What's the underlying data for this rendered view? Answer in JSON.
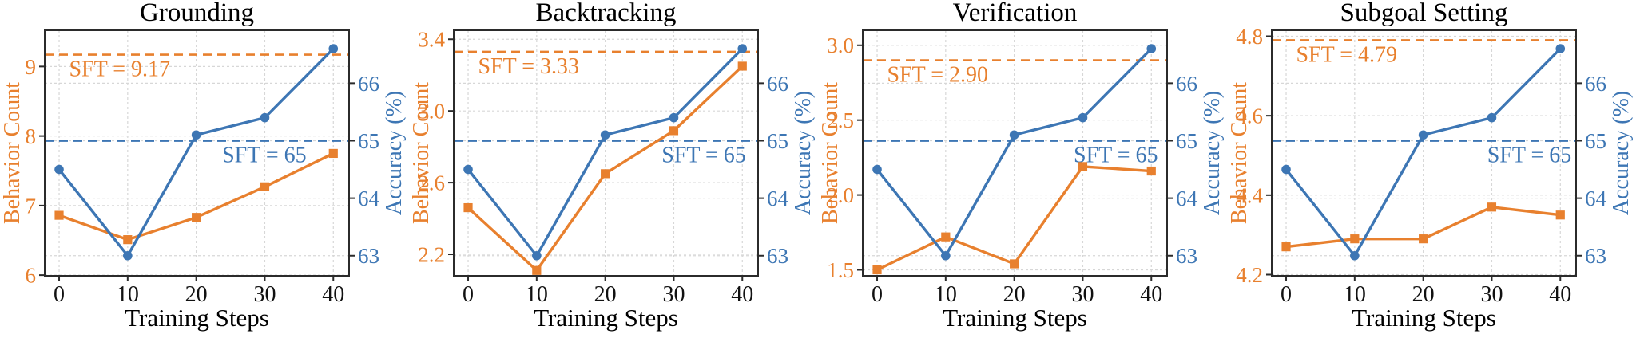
{
  "figure": {
    "xlabel": "Training Steps",
    "colors": {
      "behavior_orange": "#e8802e",
      "accuracy_blue": "#3d76b4",
      "frame": "#2b2b2b",
      "grid": "#d7d7d7",
      "tick_text_x": "#111111"
    }
  },
  "chart_data": [
    {
      "type": "line",
      "title": "Grounding",
      "xlabel": "Training Steps",
      "x": [
        0,
        10,
        20,
        30,
        40
      ],
      "x_tick_labels": [
        "0",
        "10",
        "20",
        "30",
        "40"
      ],
      "xlim": [
        -2.1,
        42.3
      ],
      "left_axis": {
        "label": "Behavior Count",
        "color": "#e8802e",
        "ticks": [
          6,
          7,
          8,
          9
        ],
        "tick_labels": [
          "6",
          "7",
          "8",
          "9"
        ],
        "ylim": [
          5.99,
          9.52
        ]
      },
      "right_axis": {
        "label": "Accuracy (%)",
        "color": "#3d76b4",
        "ticks": [
          63,
          64,
          65,
          66
        ],
        "tick_labels": [
          "63",
          "64",
          "65",
          "66"
        ],
        "ylim": [
          62.65,
          66.92
        ]
      },
      "series": [
        {
          "name": "Behavior Count",
          "axis": "left",
          "marker": "square",
          "color": "#e8802e",
          "values": [
            6.86,
            6.51,
            6.83,
            7.27,
            7.75
          ]
        },
        {
          "name": "Accuracy",
          "axis": "right",
          "marker": "circle",
          "color": "#3d76b4",
          "values": [
            64.5,
            63.0,
            65.1,
            65.4,
            66.6
          ]
        }
      ],
      "reference_lines": [
        {
          "axis": "left",
          "value": 9.17,
          "label": "SFT = 9.17",
          "color": "#e8802e",
          "label_anchor": "start",
          "label_frac": 0.08
        },
        {
          "axis": "right",
          "value": 65,
          "label": "SFT = 65",
          "color": "#3d76b4",
          "label_anchor": "end",
          "label_frac": 0.86
        }
      ]
    },
    {
      "type": "line",
      "title": "Backtracking",
      "xlabel": "Training Steps",
      "x": [
        0,
        10,
        20,
        30,
        40
      ],
      "x_tick_labels": [
        "0",
        "10",
        "20",
        "30",
        "40"
      ],
      "xlim": [
        -2.1,
        42.3
      ],
      "left_axis": {
        "label": "Behavior Count",
        "color": "#e8802e",
        "ticks": [
          2.2,
          2.6,
          3.0,
          3.4
        ],
        "tick_labels": [
          "2.2",
          "2.6",
          "3.0",
          "3.4"
        ],
        "ylim": [
          2.08,
          3.45
        ]
      },
      "right_axis": {
        "label": "Accuracy (%)",
        "color": "#3d76b4",
        "ticks": [
          63,
          64,
          65,
          66
        ],
        "tick_labels": [
          "63",
          "64",
          "65",
          "66"
        ],
        "ylim": [
          62.65,
          66.92
        ]
      },
      "series": [
        {
          "name": "Behavior Count",
          "axis": "left",
          "marker": "square",
          "color": "#e8802e",
          "values": [
            2.46,
            2.11,
            2.65,
            2.89,
            3.25
          ]
        },
        {
          "name": "Accuracy",
          "axis": "right",
          "marker": "circle",
          "color": "#3d76b4",
          "values": [
            64.5,
            63.0,
            65.1,
            65.4,
            66.6
          ]
        }
      ],
      "reference_lines": [
        {
          "axis": "left",
          "value": 3.33,
          "label": "SFT = 3.33",
          "color": "#e8802e",
          "label_anchor": "start",
          "label_frac": 0.08
        },
        {
          "axis": "right",
          "value": 65,
          "label": "SFT = 65",
          "color": "#3d76b4",
          "label_anchor": "end",
          "label_frac": 0.96
        }
      ]
    },
    {
      "type": "line",
      "title": "Verification",
      "xlabel": "Training Steps",
      "x": [
        0,
        10,
        20,
        30,
        40
      ],
      "x_tick_labels": [
        "0",
        "10",
        "20",
        "30",
        "40"
      ],
      "xlim": [
        -2.1,
        42.3
      ],
      "left_axis": {
        "label": "Behavior Count",
        "color": "#e8802e",
        "ticks": [
          1.5,
          2.0,
          2.5,
          3.0
        ],
        "tick_labels": [
          "1.5",
          "2.0",
          "2.5",
          "3.0"
        ],
        "ylim": [
          1.46,
          3.1
        ]
      },
      "right_axis": {
        "label": "Accuracy (%)",
        "color": "#3d76b4",
        "ticks": [
          63,
          64,
          65,
          66
        ],
        "tick_labels": [
          "63",
          "64",
          "65",
          "66"
        ],
        "ylim": [
          62.65,
          66.92
        ]
      },
      "series": [
        {
          "name": "Behavior Count",
          "axis": "left",
          "marker": "square",
          "color": "#e8802e",
          "values": [
            1.5,
            1.72,
            1.54,
            2.19,
            2.16
          ]
        },
        {
          "name": "Accuracy",
          "axis": "right",
          "marker": "circle",
          "color": "#3d76b4",
          "values": [
            64.5,
            63.0,
            65.1,
            65.4,
            66.6
          ]
        }
      ],
      "reference_lines": [
        {
          "axis": "left",
          "value": 2.9,
          "label": "SFT = 2.90",
          "color": "#e8802e",
          "label_anchor": "start",
          "label_frac": 0.08
        },
        {
          "axis": "right",
          "value": 65,
          "label": "SFT = 65",
          "color": "#3d76b4",
          "label_anchor": "end",
          "label_frac": 0.97
        }
      ]
    },
    {
      "type": "line",
      "title": "Subgoal Setting",
      "xlabel": "Training Steps",
      "x": [
        0,
        10,
        20,
        30,
        40
      ],
      "x_tick_labels": [
        "0",
        "10",
        "20",
        "30",
        "40"
      ],
      "xlim": [
        -2.1,
        42.3
      ],
      "left_axis": {
        "label": "Behavior Count",
        "color": "#e8802e",
        "ticks": [
          4.2,
          4.4,
          4.6,
          4.8
        ],
        "tick_labels": [
          "4.2",
          "4.4",
          "4.6",
          "4.8"
        ],
        "ylim": [
          4.197,
          4.815
        ]
      },
      "right_axis": {
        "label": "Accuracy (%)",
        "color": "#3d76b4",
        "ticks": [
          63,
          64,
          65,
          66
        ],
        "tick_labels": [
          "63",
          "64",
          "65",
          "66"
        ],
        "ylim": [
          62.65,
          66.92
        ]
      },
      "series": [
        {
          "name": "Behavior Count",
          "axis": "left",
          "marker": "square",
          "color": "#e8802e",
          "values": [
            4.27,
            4.29,
            4.29,
            4.37,
            4.35
          ]
        },
        {
          "name": "Accuracy",
          "axis": "right",
          "marker": "circle",
          "color": "#3d76b4",
          "values": [
            64.5,
            63.0,
            65.1,
            65.4,
            66.6
          ]
        }
      ],
      "reference_lines": [
        {
          "axis": "left",
          "value": 4.79,
          "label": "SFT = 4.79",
          "color": "#e8802e",
          "label_anchor": "start",
          "label_frac": 0.08
        },
        {
          "axis": "right",
          "value": 65,
          "label": "SFT = 65",
          "color": "#3d76b4",
          "label_anchor": "end",
          "label_frac": 0.985
        }
      ]
    }
  ]
}
